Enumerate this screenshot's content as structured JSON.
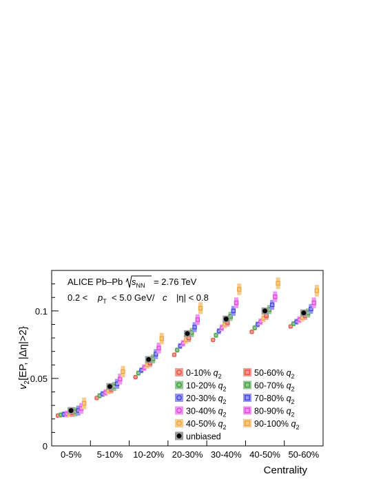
{
  "chart_data": {
    "type": "scatter",
    "info": {
      "collision": "ALICE Pb–Pb",
      "energy": "= 2.76 TeV",
      "kin_pt_prefix": "0.2 <",
      "kin_pt_suffix": "< 5.0 GeV/",
      "kin_eta": "|η| < 0.8"
    },
    "xlabel": "Centrality",
    "ylabel": "[EP, |Δη|>2}",
    "categories": [
      "0-5%",
      "5-10%",
      "10-20%",
      "20-30%",
      "30-40%",
      "40-50%",
      "50-60%"
    ],
    "yticks": [
      "0",
      "0.05",
      "0.1"
    ],
    "ylim": [
      0,
      0.13
    ],
    "colors": {
      "0-10%": "#e74c3c",
      "10-20%": "#3a9a3a",
      "20-30%": "#4040e0",
      "30-40%": "#e040e0",
      "40-50%": "#f0a030",
      "50-60%": "#e74c3c",
      "60-70%": "#3a9a3a",
      "70-80%": "#4040e0",
      "80-90%": "#e040e0",
      "90-100%": "#f0a030",
      "unbiased": "#000000"
    },
    "legend": [
      {
        "label": "0-10%",
        "marker": "circle",
        "series": "0-10%"
      },
      {
        "label": "50-60%",
        "marker": "square",
        "series": "50-60%"
      },
      {
        "label": "10-20%",
        "marker": "circle",
        "series": "10-20%"
      },
      {
        "label": "60-70%",
        "marker": "square",
        "series": "60-70%"
      },
      {
        "label": "20-30%",
        "marker": "circle",
        "series": "20-30%"
      },
      {
        "label": "70-80%",
        "marker": "square",
        "series": "70-80%"
      },
      {
        "label": "30-40%",
        "marker": "circle",
        "series": "30-40%"
      },
      {
        "label": "80-90%",
        "marker": "square",
        "series": "80-90%"
      },
      {
        "label": "40-50%",
        "marker": "circle",
        "series": "40-50%"
      },
      {
        "label": "90-100%",
        "marker": "square",
        "series": "90-100%"
      },
      {
        "label": "unbiased",
        "marker": "dot",
        "series": "unbiased"
      }
    ],
    "series": [
      {
        "name": "0-10%",
        "values": [
          0.0225,
          0.0355,
          0.051,
          0.0675,
          0.0785,
          0.0845,
          0.0885
        ]
      },
      {
        "name": "10-20%",
        "values": [
          0.023,
          0.0372,
          0.054,
          0.071,
          0.082,
          0.0875,
          0.0905
        ]
      },
      {
        "name": "20-30%",
        "values": [
          0.0234,
          0.0385,
          0.056,
          0.074,
          0.085,
          0.09,
          0.092
        ]
      },
      {
        "name": "30-40%",
        "values": [
          0.0237,
          0.0395,
          0.058,
          0.076,
          0.0875,
          0.092,
          0.0935
        ]
      },
      {
        "name": "40-50%",
        "values": [
          0.024,
          0.041,
          0.06,
          0.0785,
          0.09,
          0.0945,
          0.095
        ]
      },
      {
        "name": "50-60%",
        "values": [
          0.0245,
          0.042,
          0.0615,
          0.08,
          0.0915,
          0.0965,
          0.0965
        ]
      },
      {
        "name": "60-70%",
        "values": [
          0.0252,
          0.044,
          0.0645,
          0.084,
          0.096,
          0.101,
          0.0985
        ]
      },
      {
        "name": "70-80%",
        "values": [
          0.0262,
          0.046,
          0.068,
          0.088,
          0.1,
          0.1045,
          0.1015
        ]
      },
      {
        "name": "80-90%",
        "values": [
          0.0278,
          0.0495,
          0.0725,
          0.0935,
          0.106,
          0.1105,
          0.106
        ]
      },
      {
        "name": "90-100%",
        "values": [
          0.0315,
          0.055,
          0.0795,
          0.102,
          0.116,
          0.1205,
          0.115
        ]
      },
      {
        "name": "unbiased",
        "values": [
          0.0262,
          0.044,
          0.064,
          0.0832,
          0.094,
          0.1,
          0.0985
        ]
      }
    ]
  }
}
